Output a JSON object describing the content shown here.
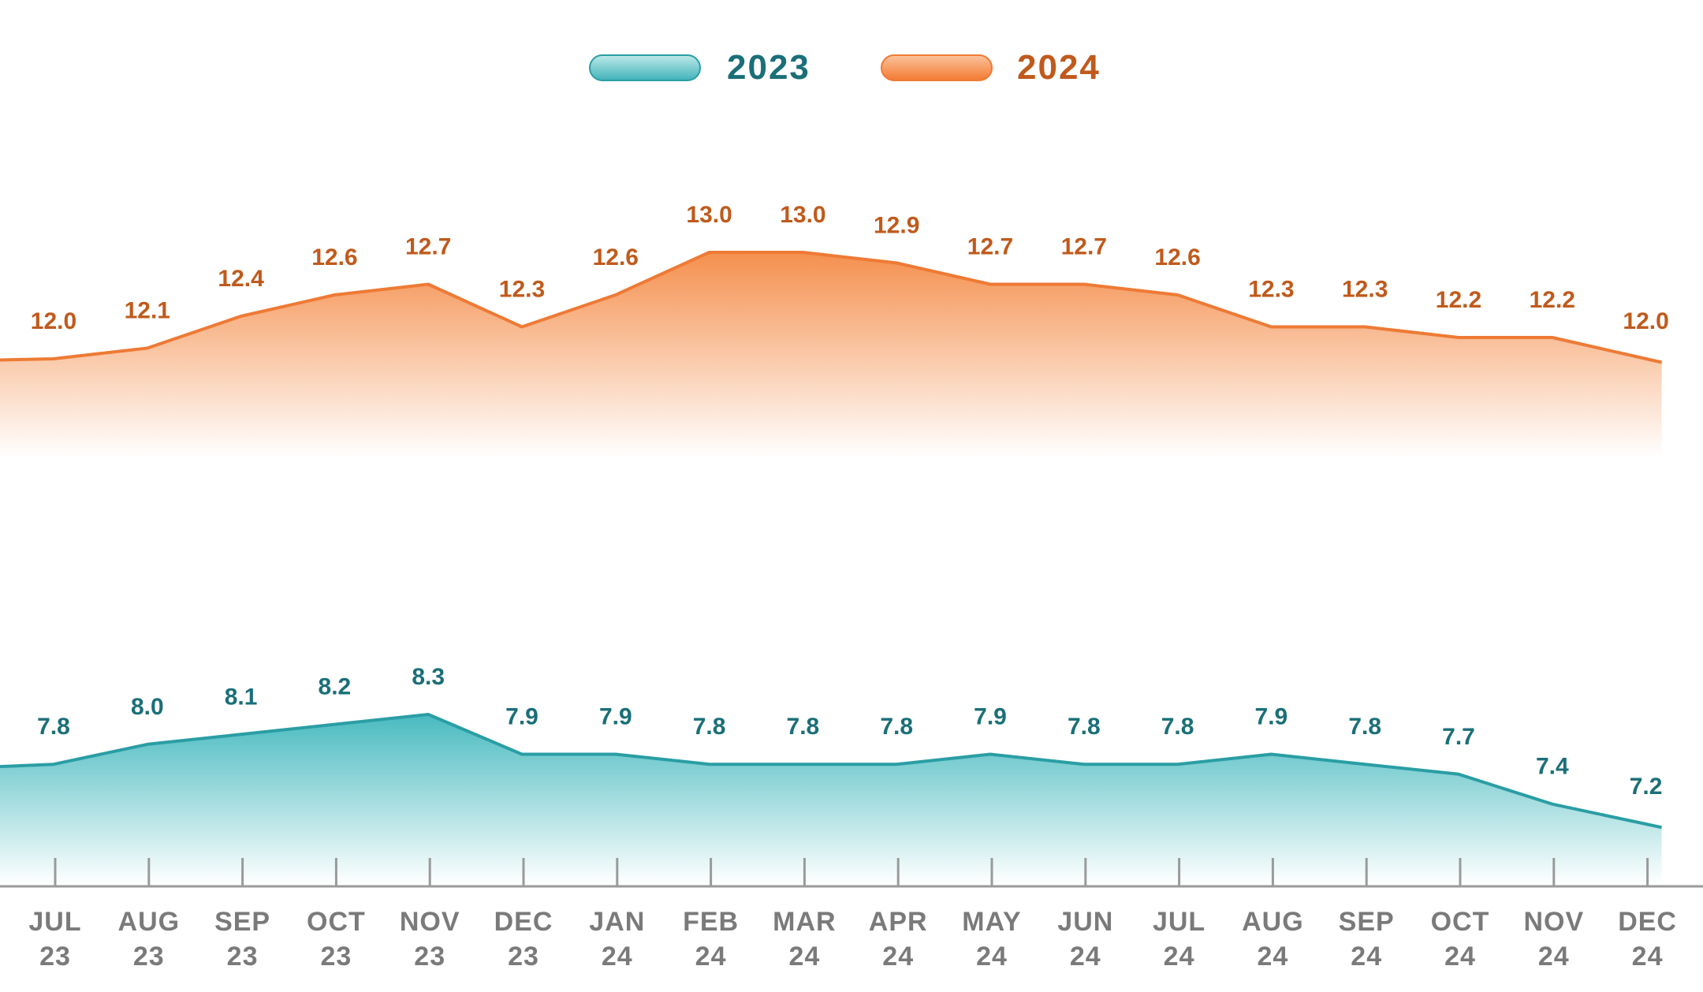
{
  "colors": {
    "series_2023_line": "#2a9ea4",
    "series_2023_fill": "#4fbfc4",
    "series_2023_label": "#1a6f78",
    "series_2024_line": "#ee7a35",
    "series_2024_fill": "#f48a45",
    "series_2024_label": "#c05a1c",
    "axis": "#9a9a9a",
    "tick_label": "#7a7a7a"
  },
  "chart_data": {
    "type": "area",
    "title": "",
    "xlabel": "",
    "ylabel": "",
    "legend_position": "top-center",
    "grid": false,
    "categories": [
      [
        "JUL",
        "23"
      ],
      [
        "AUG",
        "23"
      ],
      [
        "SEP",
        "23"
      ],
      [
        "OCT",
        "23"
      ],
      [
        "NOV",
        "23"
      ],
      [
        "DEC",
        "23"
      ],
      [
        "JAN",
        "24"
      ],
      [
        "FEB",
        "24"
      ],
      [
        "MAR",
        "24"
      ],
      [
        "APR",
        "24"
      ],
      [
        "MAY",
        "24"
      ],
      [
        "JUN",
        "24"
      ],
      [
        "JUL",
        "24"
      ],
      [
        "AUG",
        "24"
      ],
      [
        "SEP",
        "24"
      ],
      [
        "OCT",
        "24"
      ],
      [
        "NOV",
        "24"
      ],
      [
        "DEC",
        "24"
      ]
    ],
    "series": [
      {
        "name": "2023",
        "key": "s2023",
        "values": [
          7.8,
          8.0,
          8.1,
          8.2,
          8.3,
          7.9,
          7.9,
          7.8,
          7.8,
          7.8,
          7.9,
          7.8,
          7.8,
          7.9,
          7.8,
          7.7,
          7.4,
          7.2
        ],
        "labels": [
          "7.8",
          "8.0",
          "8.1",
          "8.2",
          "8.3",
          "7.9",
          "7.9",
          "7.8",
          "7.8",
          "7.8",
          "7.9",
          "7.8",
          "7.8",
          "7.9",
          "7.8",
          "7.7",
          "7.4",
          "7.2"
        ]
      },
      {
        "name": "2024",
        "key": "s2024",
        "values": [
          12.0,
          12.1,
          12.4,
          12.6,
          12.7,
          12.3,
          12.6,
          13.0,
          13.0,
          12.9,
          12.7,
          12.7,
          12.6,
          12.3,
          12.3,
          12.2,
          12.2,
          12.0
        ],
        "labels": [
          "12.0",
          "12.1",
          "12.4",
          "12.6",
          "12.7",
          "12.3",
          "12.6",
          "13.0",
          "13.0",
          "12.9",
          "12.7",
          "12.7",
          "12.6",
          "12.3",
          "12.3",
          "12.2",
          "12.2",
          "12.0"
        ]
      }
    ]
  }
}
